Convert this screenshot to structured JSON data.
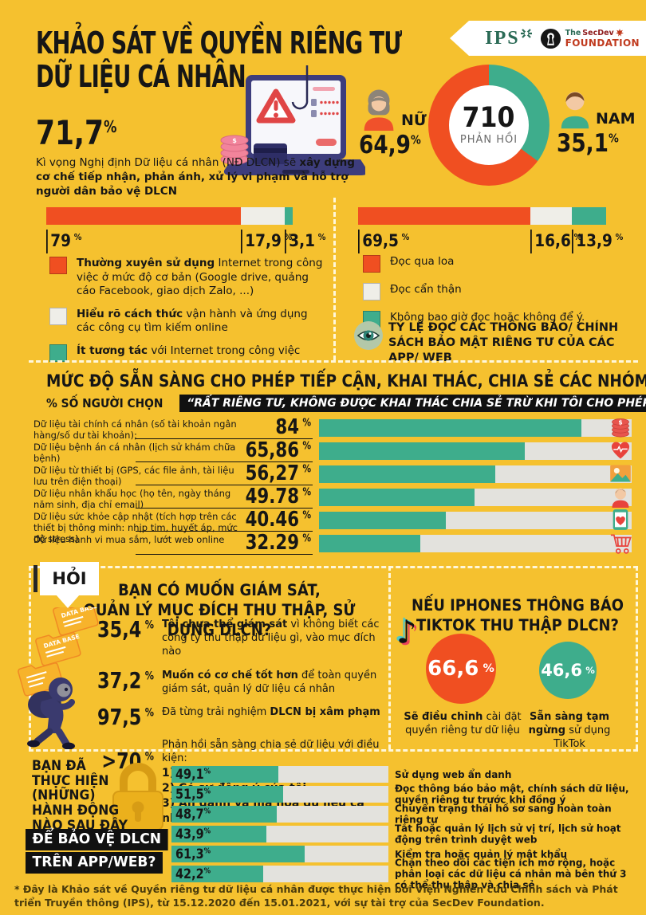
{
  "misc": {
    "percent": "%"
  },
  "colors": {
    "background": "#F5C12F",
    "orange": "#F04F21",
    "teal": "#3EAD8C",
    "gray_segment": "#EFEEE8",
    "track_gray": "#E3E2DD",
    "black": "#111111"
  },
  "header": {
    "title_line1": "KHẢO SÁT VỀ QUYỀN RIÊNG TƯ",
    "title_line2": "DỮ LIỆU CÁ NHÂN",
    "stat_value": "71,7",
    "desc_normal": "Kì vọng Nghị định Dữ liệu cá nhân (NĐ DLCN) sẽ ",
    "desc_bold": "xây dựng cơ chế tiếp nhận, phản ánh, xử lý vi phạm và hỗ trợ người dân bảo vệ DLCN",
    "logos": {
      "ips": "IPS",
      "secdev_the": "The",
      "secdev_name": "SecDev",
      "secdev_foundation": "FOUNDATION"
    }
  },
  "respondents": {
    "total": "710",
    "total_label": "PHẢN HỒI",
    "female": {
      "label": "NỮ",
      "value": "64,9",
      "pct": 64.9
    },
    "male": {
      "label": "NAM",
      "value": "35,1",
      "pct": 35.1
    }
  },
  "usage_chart": {
    "segments": [
      {
        "display": "79",
        "pct": 79,
        "color": "#F04F21"
      },
      {
        "display": "17,9",
        "pct": 17.9,
        "color": "#EFEEE8"
      },
      {
        "display": "3,1",
        "pct": 3.1,
        "color": "#3EAD8C"
      }
    ],
    "legend": [
      {
        "color": "#F04F21",
        "bold": "Thường xuyên sử dụng",
        "rest": " Internet trong công việc ở mức độ cơ bản (Google drive, quảng cáo Facebook, giao dịch Zalo, ...)"
      },
      {
        "color": "#EFEEE8",
        "bold": "Hiểu rõ cách thức",
        "rest": " vận hành và ứng dụng các công cụ tìm kiếm online"
      },
      {
        "color": "#3EAD8C",
        "bold": "Ít tương tác",
        "rest": " với Internet trong công việc"
      }
    ]
  },
  "reading_chart": {
    "segments": [
      {
        "display": "69,5",
        "pct": 69.5,
        "color": "#F04F21"
      },
      {
        "display": "16,6",
        "pct": 16.6,
        "color": "#EFEEE8"
      },
      {
        "display": "13,9",
        "pct": 13.9,
        "color": "#3EAD8C"
      }
    ],
    "legend": [
      {
        "color": "#F04F21",
        "label": "Đọc qua loa"
      },
      {
        "color": "#EFEEE8",
        "label": "Đọc cẩn thận"
      },
      {
        "color": "#3EAD8C",
        "label": "Không bao giờ đọc hoặc không để ý."
      }
    ],
    "caption": "TỶ LỆ ĐỌC CÁC THÔNG BÁO/ CHÍNH SÁCH BẢO MẬT RIÊNG TƯ CỦA CÁC APP/ WEB"
  },
  "privacy_section": {
    "title": "MỨC ĐỘ SẴN SÀNG CHO PHÉP TIẾP CẬN, KHAI THÁC, CHIA SẺ CÁC NHÓM DỮ LIỆU",
    "subtitle_prefix": "% SỐ NGƯỜI CHỌN",
    "subtitle_quote": "“RẤT RIÊNG TƯ, KHÔNG ĐƯỢC KHAI THÁC CHIA SẺ TRỪ KHI TÔI CHO PHÉP”",
    "rows": [
      {
        "label": "Dữ liệu tài chính cá nhân (số tài khoản ngân hàng/số dư tài khoản);",
        "value": "84",
        "pct": 84,
        "icon": "coins-icon"
      },
      {
        "label": "Dữ liệu bệnh án cá nhân (lịch sử khám chữa bệnh)",
        "value": "65,86",
        "pct": 65.86,
        "icon": "heart-icon"
      },
      {
        "label": "Dữ liệu từ thiết bị (GPS, các file ảnh, tài liệu lưu trên điện thoại)",
        "value": "56,27",
        "pct": 56.27,
        "icon": "photo-icon"
      },
      {
        "label": "Dữ liệu nhân khẩu học (họ tên, ngày tháng năm sinh, địa chỉ email)",
        "value": "49.78",
        "pct": 49.78,
        "icon": "person-icon"
      },
      {
        "label": "Dữ liệu sức khỏe cập nhật (tích hợp trên các thiết bị thông minh: nhịp tim, huyết áp, mức độ stress)",
        "value": "40.46",
        "pct": 40.46,
        "icon": "health-phone-icon"
      },
      {
        "label": "Dữ liệu hành vi mua sắm, lướt web online",
        "value": "32.29",
        "pct": 32.29,
        "icon": "cart-icon"
      }
    ]
  },
  "monitor_section": {
    "tag": "HỎI",
    "title_line1": "BẠN CÓ MUỐN GIÁM SÁT,",
    "title_line2": "QUẢN LÝ MỤC ĐÍCH THU THẬP, SỬ DỤNG DLCN?",
    "folder_label": "DATA BASE",
    "items": [
      {
        "value": "35,4",
        "pre": "",
        "bold": "Tôi chưa thể giám sát",
        "rest": " vì không biết các công ty thu thập dữ liệu gì, vào mục đích nào"
      },
      {
        "value": "37,2",
        "pre": "",
        "bold": "Muốn có cơ chế tốt hơn",
        "rest": " để toàn quyền giám sát, quản lý dữ liệu cá nhân"
      },
      {
        "value": "97,5",
        "pre": "Đã từng trải nghiệm ",
        "bold": "DLCN bị xâm phạm",
        "rest": ""
      },
      {
        "value": ">70",
        "pre": "Phản hồi sẵn sàng chia sẻ dữ liệu với điều kiện:",
        "bold_lines": [
          "1) Minh bạch mục đích sử dụng",
          "2) Có sự đồng ý của tôi",
          "3) Ẩn danh và mã hóa dữ liệu cá nhân"
        ]
      }
    ]
  },
  "tiktok_section": {
    "title_line1": "NẾU IPHONES THÔNG BÁO",
    "title_line2": "TIKTOK THU THẬP DLCN?",
    "circles": [
      {
        "value": "66,6",
        "pct": 66.6,
        "color": "#F04F21",
        "bold": "Sẽ điều chỉnh",
        "rest": " cài đặt quyền riêng tư dữ liệu"
      },
      {
        "value": "46,6",
        "pct": 46.6,
        "color": "#3EAD8C",
        "bold": "Sẵn sàng tạm ngừng",
        "rest": " sử dụng TikTok"
      }
    ]
  },
  "actions_section": {
    "title_lines": [
      "BẠN ĐÃ",
      "THỰC HIỆN",
      "(NHỮNG)",
      "HÀNH ĐỘNG",
      "NÀO SAU ĐÂY"
    ],
    "title_boxed_lines": [
      "ĐỂ BẢO VỆ DLCN",
      "TRÊN APP/WEB?"
    ],
    "bars": [
      {
        "value": "49,1",
        "pct": 49.1,
        "label": "Sử dụng web ẩn danh"
      },
      {
        "value": "51,5",
        "pct": 51.5,
        "label": "Đọc thông báo bảo mật, chính sách dữ liệu, quyền riêng tư trước khi đồng ý"
      },
      {
        "value": "48,7",
        "pct": 48.7,
        "label": "Chuyển trạng thái hồ sơ sang hoàn toàn riêng tư"
      },
      {
        "value": "43,9",
        "pct": 43.9,
        "label": "Tắt hoặc quản lý lịch sử vị trí, lịch sử hoạt động trên trình duyệt web"
      },
      {
        "value": "61,3",
        "pct": 61.3,
        "label": "Kiểm tra hoặc quản lý mật khẩu"
      },
      {
        "value": "42,2",
        "pct": 42.2,
        "label": "Chặn theo dõi các tiện ích mở rộng, hoặc phân loại các dữ liệu cá nhân mà bên thứ 3 có thể thu thập và chia sẻ"
      }
    ]
  },
  "footer": {
    "note": "* Đây là Khảo sát về Quyền riêng tư dữ liệu cá nhân được thực hiện bởi Viện Nghiên cứu Chính sách và Phát triển Truyền thông (IPS), từ 15.12.2020 đến 15.01.2021, với sự tài trợ của SecDev Foundation."
  },
  "chart_data": [
    {
      "id": "respondents-donut",
      "type": "pie",
      "title": "710 PHẢN HỒI",
      "labels": [
        "NỮ",
        "NAM"
      ],
      "values": [
        64.9,
        35.1
      ],
      "colors": [
        "#F04F21",
        "#3EAD8C"
      ],
      "legend_position": "sides"
    },
    {
      "id": "internet-usage",
      "type": "bar",
      "stacked": true,
      "orientation": "horizontal",
      "categories": [
        "Thường xuyên sử dụng Internet trong công việc ở mức độ cơ bản",
        "Hiểu rõ cách thức vận hành và ứng dụng các công cụ tìm kiếm online",
        "Ít tương tác với Internet trong công việc"
      ],
      "values": [
        79,
        17.9,
        3.1
      ],
      "colors": [
        "#F04F21",
        "#EFEEE8",
        "#3EAD8C"
      ],
      "xlim": [
        0,
        100
      ]
    },
    {
      "id": "policy-reading",
      "type": "bar",
      "stacked": true,
      "orientation": "horizontal",
      "title": "TỶ LỆ ĐỌC CÁC THÔNG BÁO/ CHÍNH SÁCH BẢO MẬT RIÊNG TƯ CỦA CÁC APP/ WEB",
      "categories": [
        "Đọc qua loa",
        "Đọc cẩn thận",
        "Không bao giờ đọc hoặc không để ý."
      ],
      "values": [
        69.5,
        16.6,
        13.9
      ],
      "colors": [
        "#F04F21",
        "#EFEEE8",
        "#3EAD8C"
      ],
      "xlim": [
        0,
        100
      ]
    },
    {
      "id": "privacy-groups",
      "type": "bar",
      "orientation": "horizontal",
      "title": "MỨC ĐỘ SẴN SÀNG CHO PHÉP TIẾP CẬN, KHAI THÁC, CHIA SẺ CÁC NHÓM DỮ LIỆU",
      "categories": [
        "Dữ liệu tài chính cá nhân",
        "Dữ liệu bệnh án cá nhân",
        "Dữ liệu từ thiết bị",
        "Dữ liệu nhân khẩu học",
        "Dữ liệu sức khỏe cập nhật",
        "Dữ liệu hành vi mua sắm, lướt web online"
      ],
      "values": [
        84,
        65.86,
        56.27,
        49.78,
        40.46,
        32.29
      ],
      "xlim": [
        0,
        100
      ],
      "bar_color": "#3EAD8C"
    },
    {
      "id": "tiktok-response",
      "type": "pie",
      "categories": [
        "Sẽ điều chỉnh cài đặt quyền riêng tư dữ liệu",
        "Sẵn sàng tạm ngừng sử dụng TikTok"
      ],
      "values": [
        66.6,
        46.6
      ],
      "colors": [
        "#F04F21",
        "#3EAD8C"
      ]
    },
    {
      "id": "protective-actions",
      "type": "bar",
      "orientation": "horizontal",
      "categories": [
        "Sử dụng web ẩn danh",
        "Đọc thông báo bảo mật, chính sách dữ liệu, quyền riêng tư trước khi đồng ý",
        "Chuyển trạng thái hồ sơ sang hoàn toàn riêng tư",
        "Tắt hoặc quản lý lịch sử vị trí, lịch sử hoạt động trên trình duyệt web",
        "Kiểm tra hoặc quản lý mật khẩu",
        "Chặn theo dõi các tiện ích mở rộng, hoặc phân loại các dữ liệu cá nhân mà bên thứ 3 có thể thu thập và chia sẻ"
      ],
      "values": [
        49.1,
        51.5,
        48.7,
        43.9,
        61.3,
        42.2
      ],
      "xlim": [
        0,
        100
      ],
      "bar_color": "#3EAD8C"
    }
  ]
}
